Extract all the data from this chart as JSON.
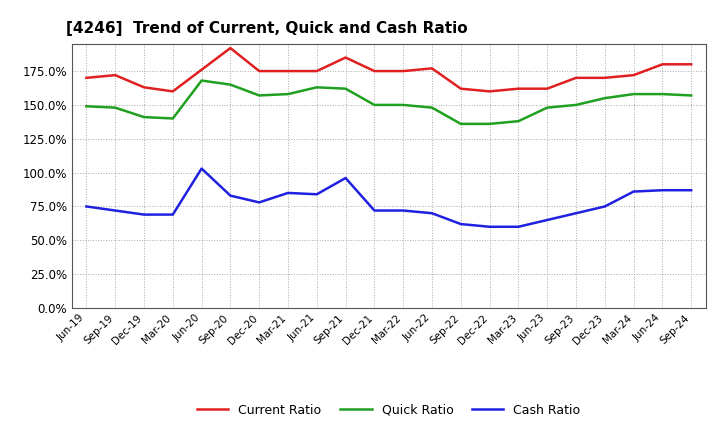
{
  "title": "[4246]  Trend of Current, Quick and Cash Ratio",
  "x_labels": [
    "Jun-19",
    "Sep-19",
    "Dec-19",
    "Mar-20",
    "Jun-20",
    "Sep-20",
    "Dec-20",
    "Mar-21",
    "Jun-21",
    "Sep-21",
    "Dec-21",
    "Mar-22",
    "Jun-22",
    "Sep-22",
    "Dec-22",
    "Mar-23",
    "Jun-23",
    "Sep-23",
    "Dec-23",
    "Mar-24",
    "Jun-24",
    "Sep-24"
  ],
  "current_ratio": [
    170,
    172,
    163,
    160,
    176,
    192,
    175,
    175,
    175,
    185,
    175,
    175,
    177,
    162,
    160,
    162,
    162,
    170,
    170,
    172,
    180,
    180
  ],
  "quick_ratio": [
    149,
    148,
    141,
    140,
    168,
    165,
    157,
    158,
    163,
    162,
    150,
    150,
    148,
    136,
    136,
    138,
    148,
    150,
    155,
    158,
    158,
    157
  ],
  "cash_ratio": [
    75,
    72,
    69,
    69,
    103,
    83,
    78,
    85,
    84,
    96,
    72,
    72,
    70,
    62,
    60,
    60,
    65,
    70,
    75,
    86,
    87,
    87
  ],
  "current_color": "#e02020",
  "quick_color": "#20a020",
  "cash_color": "#2020e0",
  "ylim": [
    0,
    195
  ],
  "yticks": [
    0,
    25,
    50,
    75,
    100,
    125,
    150,
    175
  ],
  "background_color": "#ffffff",
  "plot_bg_color": "#ffffff",
  "grid_color": "#aaaaaa",
  "legend_labels": [
    "Current Ratio",
    "Quick Ratio",
    "Cash Ratio"
  ]
}
